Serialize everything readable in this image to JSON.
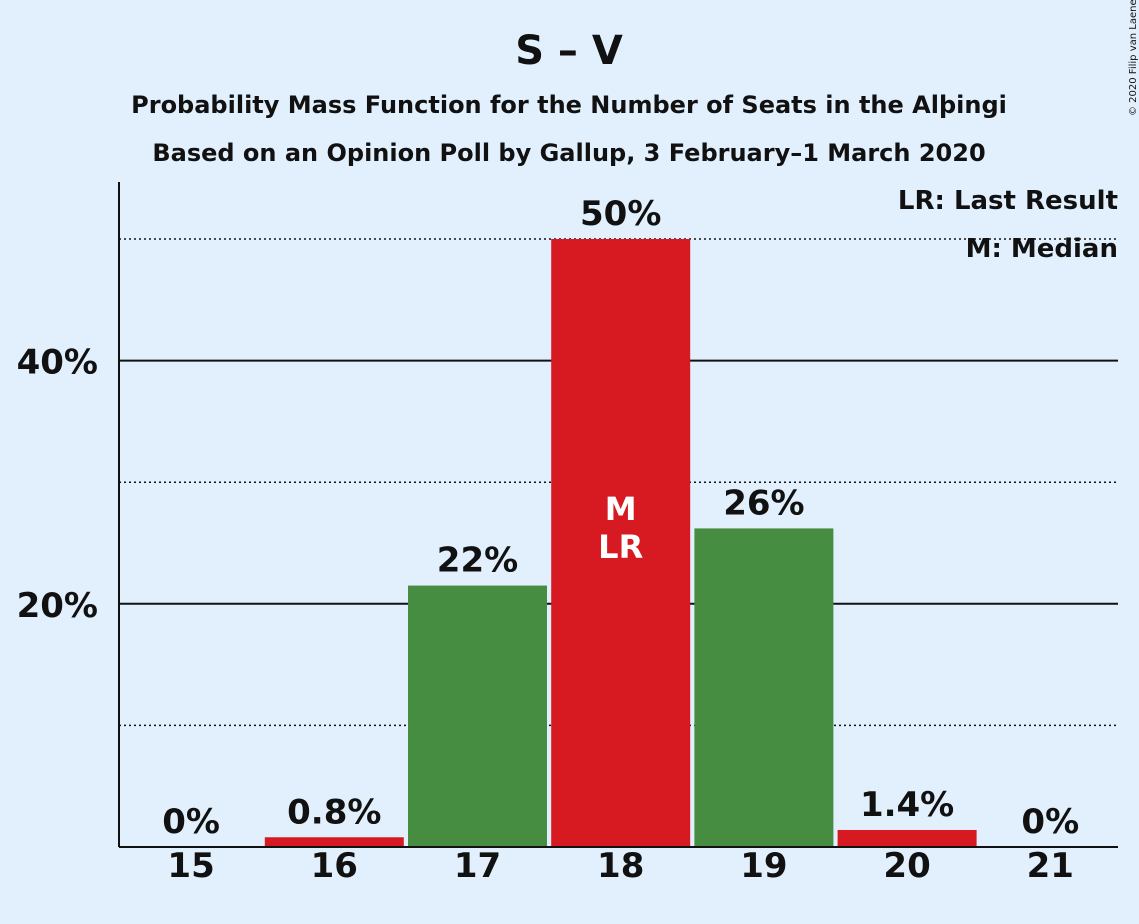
{
  "chart_data": {
    "type": "bar",
    "title": "S – V",
    "subtitle_1": "Probability Mass Function for the Number of Seats in the Alþingi",
    "subtitle_2": "Based on an Opinion Poll by Gallup, 3 February–1 March 2020",
    "copyright": "© 2020 Filip van Laenen",
    "legend": {
      "placement": "top-right",
      "entries": [
        "LR: Last Result",
        "M: Median"
      ]
    },
    "categories": [
      "15",
      "16",
      "17",
      "18",
      "19",
      "20",
      "21"
    ],
    "values": [
      0,
      0.8,
      21.5,
      50,
      26.2,
      1.4,
      0
    ],
    "value_labels": [
      "0%",
      "0.8%",
      "22%",
      "50%",
      "26%",
      "1.4%",
      "0%"
    ],
    "bar_colors": [
      "#d71921",
      "#d71921",
      "#468d42",
      "#d71921",
      "#468d42",
      "#d71921",
      "#d71921"
    ],
    "bar_annotations": {
      "18": [
        "M",
        "LR"
      ]
    },
    "y_ticks": [
      {
        "value": 20,
        "label": "20%"
      },
      {
        "value": 40,
        "label": "40%"
      }
    ],
    "dotted_gridlines": [
      10,
      20,
      30,
      50
    ],
    "ylim": [
      0,
      55
    ],
    "xlabel": "",
    "ylabel": "",
    "grid": true,
    "colors": {
      "background": "#e2f0fe",
      "red": "#d71921",
      "green": "#468d42",
      "axis": "#111111"
    }
  }
}
